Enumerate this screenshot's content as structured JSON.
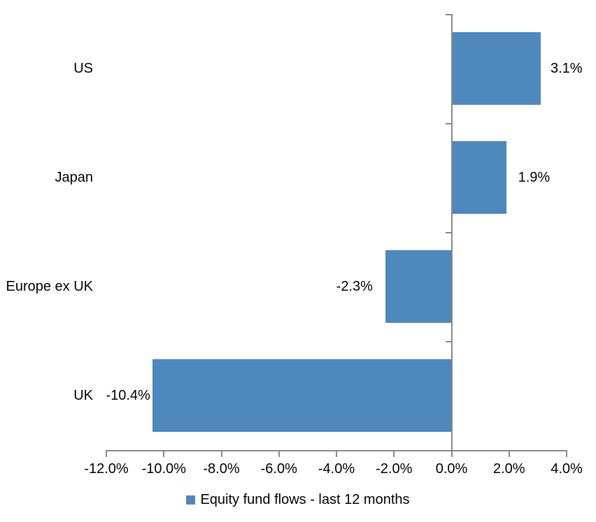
{
  "chart_data": {
    "type": "bar",
    "orientation": "horizontal",
    "title": "",
    "categories": [
      "US",
      "Japan",
      "Europe ex UK",
      "UK"
    ],
    "series": [
      {
        "name": "Equity fund flows - last 12 months",
        "values": [
          3.1,
          1.9,
          -2.3,
          -10.4
        ],
        "data_labels": [
          "3.1%",
          "1.9%",
          "-2.3%",
          "-10.4%"
        ],
        "color": "#4e88bc"
      }
    ],
    "xlim": [
      -12,
      4
    ],
    "x_ticks": [
      -12,
      -10,
      -8,
      -6,
      -4,
      -2,
      0,
      2,
      4
    ],
    "x_tick_labels": [
      "-12.0%",
      "-10.0%",
      "-8.0%",
      "-6.0%",
      "-4.0%",
      "-2.0%",
      "0.0%",
      "2.0%",
      "4.0%"
    ],
    "grid": false,
    "legend_position": "bottom",
    "data_label_position": "outside-end",
    "axis_color": "#898989",
    "text_color": "#000000",
    "background_color": "#ffffff"
  },
  "legend": {
    "swatch_color": "#4e88bc",
    "label": "Equity fund flows - last 12 months"
  }
}
